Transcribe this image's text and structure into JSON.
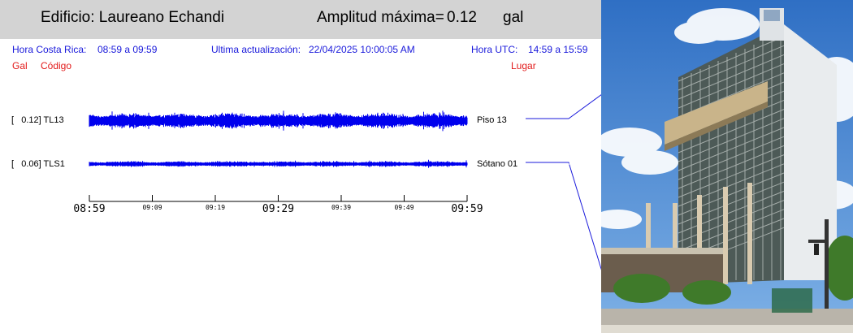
{
  "header": {
    "building": "Edificio: Laureano Echandi",
    "amplitude_label": "Amplitud máxima=",
    "amplitude_value": "0.12",
    "amplitude_unit": "gal"
  },
  "info": {
    "local_time_label": "Hora Costa Rica:",
    "local_time_range": "08:59 a 09:59",
    "update_label": "Ultima actualización:",
    "update_value": "22/04/2025 10:00:05 AM",
    "utc_label": "Hora UTC:",
    "utc_range": "14:59 a 15:59"
  },
  "columns": {
    "gal": "Gal",
    "code": "Código",
    "place": "Lugar"
  },
  "traces": [
    {
      "amplitude": "[   0.12] TL13",
      "place": "Piso 13",
      "max_gal": 0.12
    },
    {
      "amplitude": "[   0.06] TLS1",
      "place": "Sótano 01",
      "max_gal": 0.06
    }
  ],
  "time_axis": {
    "major_ticks": [
      "08:59",
      "09:29",
      "09:59"
    ],
    "minor_ticks": [
      "09:09",
      "09:19",
      "09:39",
      "09:49"
    ]
  },
  "colors": {
    "trace": "#0000ee",
    "header_bg": "#d3d3d3",
    "info_text": "#1a1adb",
    "red_text": "#e21b1b"
  }
}
